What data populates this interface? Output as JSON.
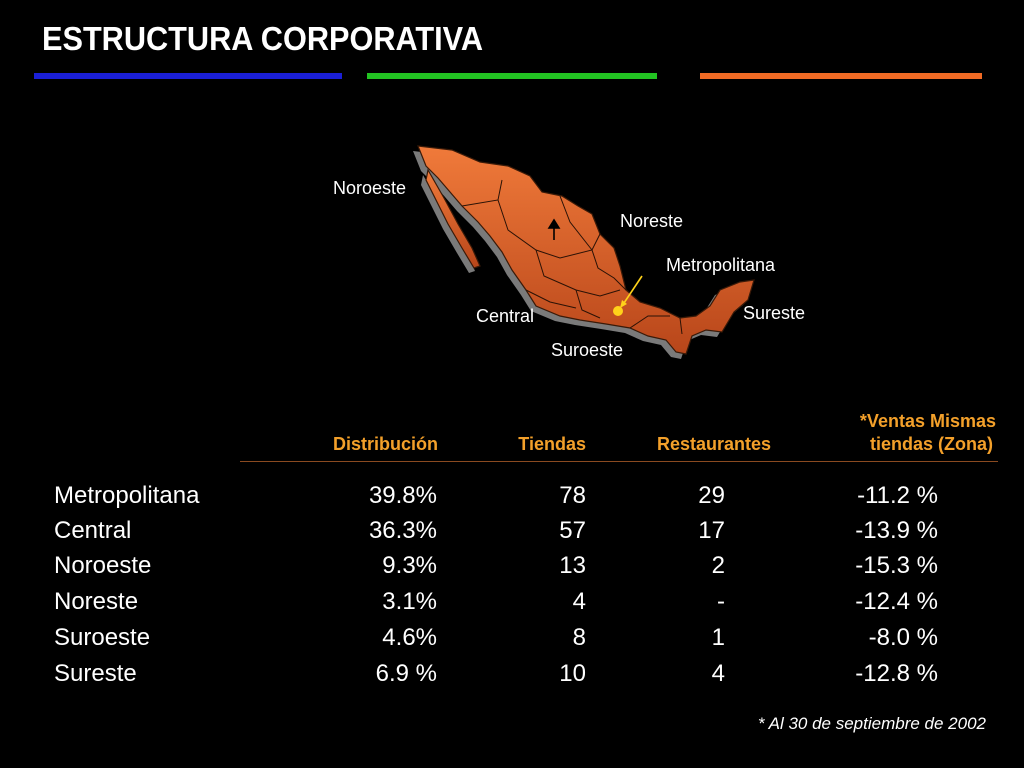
{
  "title": "ESTRUCTURA CORPORATIVA",
  "colors": {
    "bar_blue": "#1a1fd6",
    "bar_green": "#22c322",
    "bar_orange": "#f06a24",
    "header_text": "#f3a02a",
    "map_fill": "#d65a22",
    "marker": "#ffd21a"
  },
  "map": {
    "labels": {
      "noroeste": "Noroeste",
      "noreste": "Noreste",
      "metropolitana": "Metropolitana",
      "sureste": "Sureste",
      "central": "Central",
      "suroeste": "Suroeste"
    }
  },
  "table": {
    "headers": {
      "distribucion": "Distribución",
      "tiendas": "Tiendas",
      "restaurantes": "Restaurantes",
      "ventas_line1": "*Ventas Mismas",
      "ventas_line2": "tiendas  (Zona)"
    },
    "rows": [
      {
        "zona": "Metropolitana",
        "distribucion": "39.8%",
        "tiendas": "78",
        "restaurantes": "29",
        "ventas": "-11.2 %"
      },
      {
        "zona": "Central",
        "distribucion": "36.3%",
        "tiendas": "57",
        "restaurantes": "17",
        "ventas": "-13.9 %"
      },
      {
        "zona": "Noroeste",
        "distribucion": "9.3%",
        "tiendas": "13",
        "restaurantes": "2",
        "ventas": "-15.3 %"
      },
      {
        "zona": "Noreste",
        "distribucion": "3.1%",
        "tiendas": "4",
        "restaurantes": "-",
        "ventas": "-12.4 %"
      },
      {
        "zona": "Suroeste",
        "distribucion": "4.6%",
        "tiendas": "8",
        "restaurantes": "1",
        "ventas": "-8.0 %"
      },
      {
        "zona": "Sureste",
        "distribucion": "6.9 %",
        "tiendas": "10",
        "restaurantes": "4",
        "ventas": "-12.8 %"
      }
    ]
  },
  "footnote": "* Al 30 de septiembre de 2002"
}
